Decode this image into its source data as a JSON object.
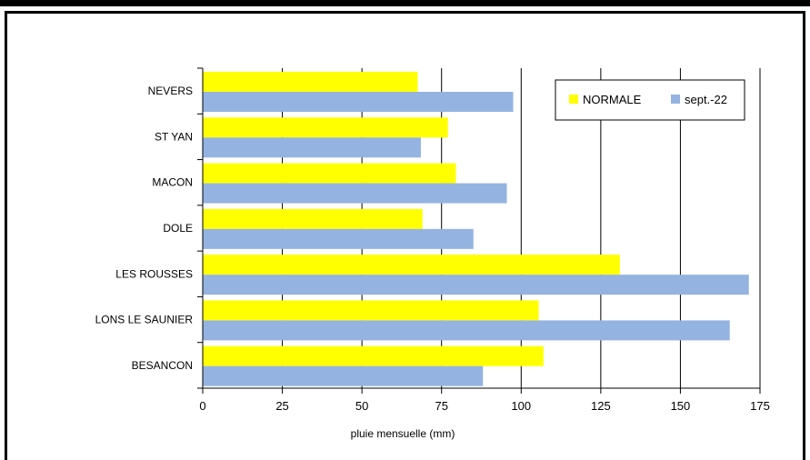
{
  "chart_data": {
    "type": "bar",
    "orientation": "horizontal",
    "categories": [
      "NEVERS",
      "ST YAN",
      "MACON",
      "DOLE",
      "LES ROUSSES",
      "LONS LE SAUNIER",
      "BESANCON"
    ],
    "series": [
      {
        "name": "NORMALE",
        "color": "#ffff00",
        "values": [
          67.5,
          77,
          79.5,
          69,
          131,
          105.5,
          107
        ]
      },
      {
        "name": "sept.-22",
        "color": "#95b3e0",
        "values": [
          97.5,
          68.5,
          95.5,
          85,
          171.5,
          165.5,
          88
        ]
      }
    ],
    "title": "",
    "xlabel": "pluie mensuelle (mm)",
    "ylabel": "",
    "xlim": [
      0,
      175
    ],
    "xticks": [
      "0",
      "25",
      "50",
      "75",
      "100",
      "125",
      "150",
      "175"
    ],
    "grid": "vertical",
    "legend_position": "top-right"
  }
}
